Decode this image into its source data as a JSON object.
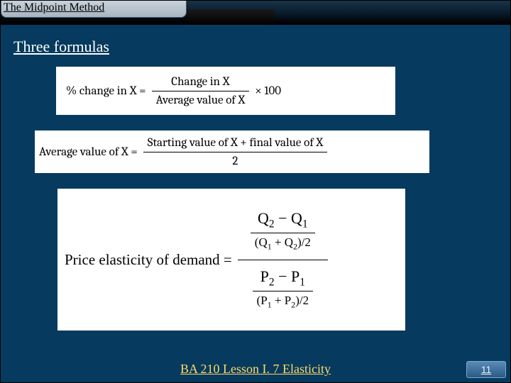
{
  "header": {
    "title": "The Midpoint Method"
  },
  "subtitle": "Three formulas",
  "formula1": {
    "lhs": "% change in X =",
    "numerator": "Change in X",
    "denominator": "Average value of X",
    "tail": "× 100"
  },
  "formula2": {
    "lhs": "Average value of X =",
    "numerator": "Starting value of X + final value of X",
    "denominator": "2"
  },
  "formula3": {
    "lhs": "Price elasticity of demand =",
    "top_num_a": "Q",
    "top_num_a_sub": "2",
    "top_num_op": " − ",
    "top_num_b": "Q",
    "top_num_b_sub": "1",
    "top_den_open": "(Q",
    "top_den_sub1": "1",
    "top_den_mid": " + Q",
    "top_den_sub2": "2",
    "top_den_close": ")/2",
    "bot_num_a": "P",
    "bot_num_a_sub": "2",
    "bot_num_op": " − ",
    "bot_num_b": "P",
    "bot_num_b_sub": "1",
    "bot_den_open": "(P",
    "bot_den_sub1": "1",
    "bot_den_mid": " + P",
    "bot_den_sub2": "2",
    "bot_den_close": ")/2"
  },
  "footer": {
    "course": "BA 210  Lesson I. 7 Elasticity",
    "page": "11"
  },
  "colors": {
    "slide_bg": "#063a5e",
    "footer_text": "#ffd966",
    "formula_bg": "#ffffff"
  }
}
